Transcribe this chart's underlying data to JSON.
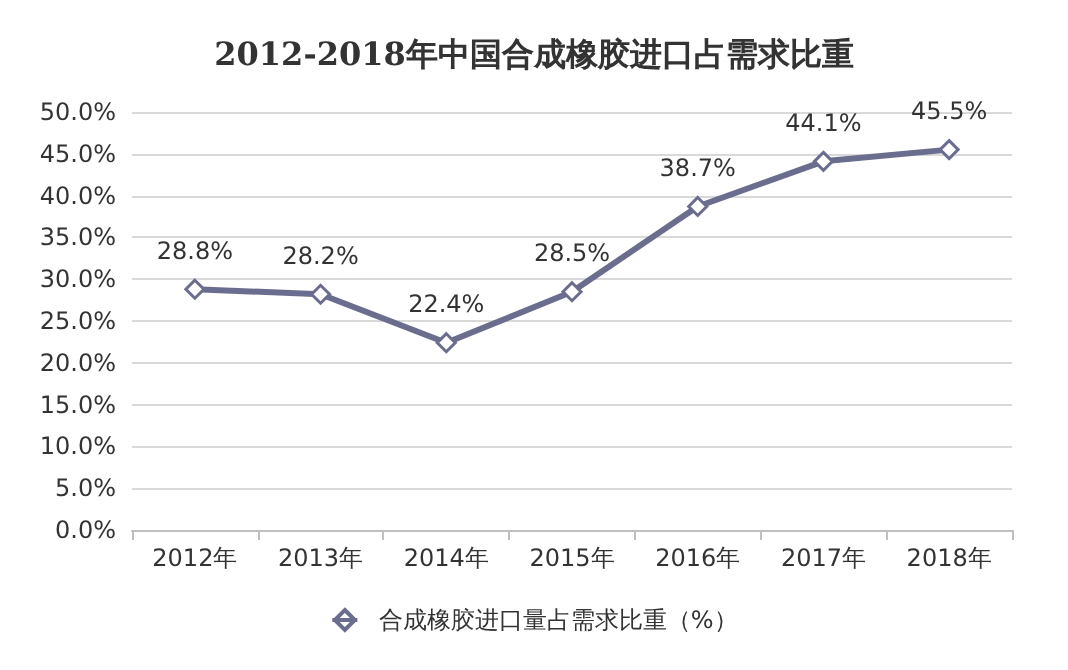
{
  "chart_data": {
    "type": "line",
    "title": "2012-2018年中国合成橡胶进口占需求比重",
    "categories": [
      "2012年",
      "2013年",
      "2014年",
      "2015年",
      "2016年",
      "2017年",
      "2018年"
    ],
    "series": [
      {
        "name": "合成橡胶进口量占需求比重（%）",
        "color": "#6b6d8e",
        "values": [
          28.8,
          28.2,
          22.4,
          28.5,
          38.7,
          44.1,
          45.5
        ],
        "value_labels": [
          "28.8%",
          "28.2%",
          "22.4%",
          "28.5%",
          "38.7%",
          "44.1%",
          "45.5%"
        ]
      }
    ],
    "ylim": [
      0,
      50
    ],
    "yticks": [
      {
        "value": 0,
        "label": "0.0%"
      },
      {
        "value": 5,
        "label": "5.0%"
      },
      {
        "value": 10,
        "label": "10.0%"
      },
      {
        "value": 15,
        "label": "15.0%"
      },
      {
        "value": 20,
        "label": "20.0%"
      },
      {
        "value": 25,
        "label": "25.0%"
      },
      {
        "value": 30,
        "label": "30.0%"
      },
      {
        "value": 35,
        "label": "35.0%"
      },
      {
        "value": 40,
        "label": "40.0%"
      },
      {
        "value": 45,
        "label": "45.0%"
      },
      {
        "value": 50,
        "label": "50.0%"
      }
    ],
    "grid": "y",
    "legend": "bottom",
    "marker": "diamond",
    "line_style": "solid"
  }
}
